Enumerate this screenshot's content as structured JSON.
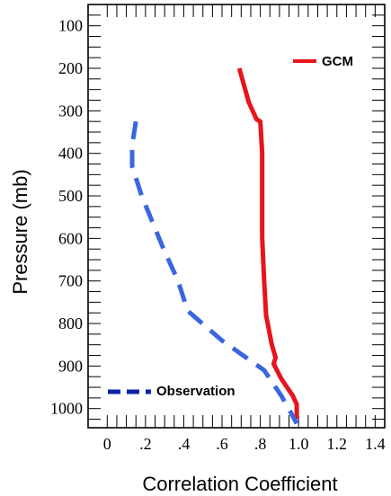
{
  "chart_data": {
    "type": "line",
    "xlabel": "Correlation Coefficient",
    "ylabel": "Pressure  (mb)",
    "xlim": [
      -0.1,
      1.45
    ],
    "ylim": [
      1045,
      50
    ],
    "y_inverted": true,
    "x_ticks": [
      "0",
      ".2",
      ".4",
      ".6",
      ".8",
      "1.0",
      "1.2",
      "1.4"
    ],
    "x_tick_values": [
      0,
      0.2,
      0.4,
      0.6,
      0.8,
      1.0,
      1.2,
      1.4
    ],
    "y_ticks": [
      "100",
      "200",
      "300",
      "400",
      "500",
      "600",
      "700",
      "800",
      "900",
      "1000"
    ],
    "y_tick_values": [
      100,
      200,
      300,
      400,
      500,
      600,
      700,
      800,
      900,
      1000
    ],
    "grid": false,
    "legend": "inline",
    "series": [
      {
        "name": "GCM",
        "color": "#e8141b",
        "style": "solid",
        "legend_position": "top-right",
        "points": [
          [
            0.69,
            200
          ],
          [
            0.74,
            280
          ],
          [
            0.78,
            320
          ],
          [
            0.8,
            325
          ],
          [
            0.81,
            400
          ],
          [
            0.81,
            500
          ],
          [
            0.81,
            600
          ],
          [
            0.82,
            700
          ],
          [
            0.83,
            780
          ],
          [
            0.86,
            850
          ],
          [
            0.88,
            880
          ],
          [
            0.87,
            895
          ],
          [
            0.91,
            930
          ],
          [
            0.97,
            970
          ],
          [
            0.99,
            990
          ],
          [
            0.99,
            1025
          ]
        ]
      },
      {
        "name": "Observation",
        "color": "#3a67e0",
        "style": "dashed",
        "legend_position": "bottom-left",
        "legend_color": "#0b22a8",
        "points": [
          [
            0.15,
            325
          ],
          [
            0.13,
            380
          ],
          [
            0.13,
            430
          ],
          [
            0.18,
            500
          ],
          [
            0.29,
            620
          ],
          [
            0.37,
            700
          ],
          [
            0.42,
            770
          ],
          [
            0.6,
            840
          ],
          [
            0.82,
            910
          ],
          [
            0.91,
            970
          ],
          [
            0.96,
            1010
          ],
          [
            0.99,
            1035
          ]
        ]
      }
    ]
  }
}
